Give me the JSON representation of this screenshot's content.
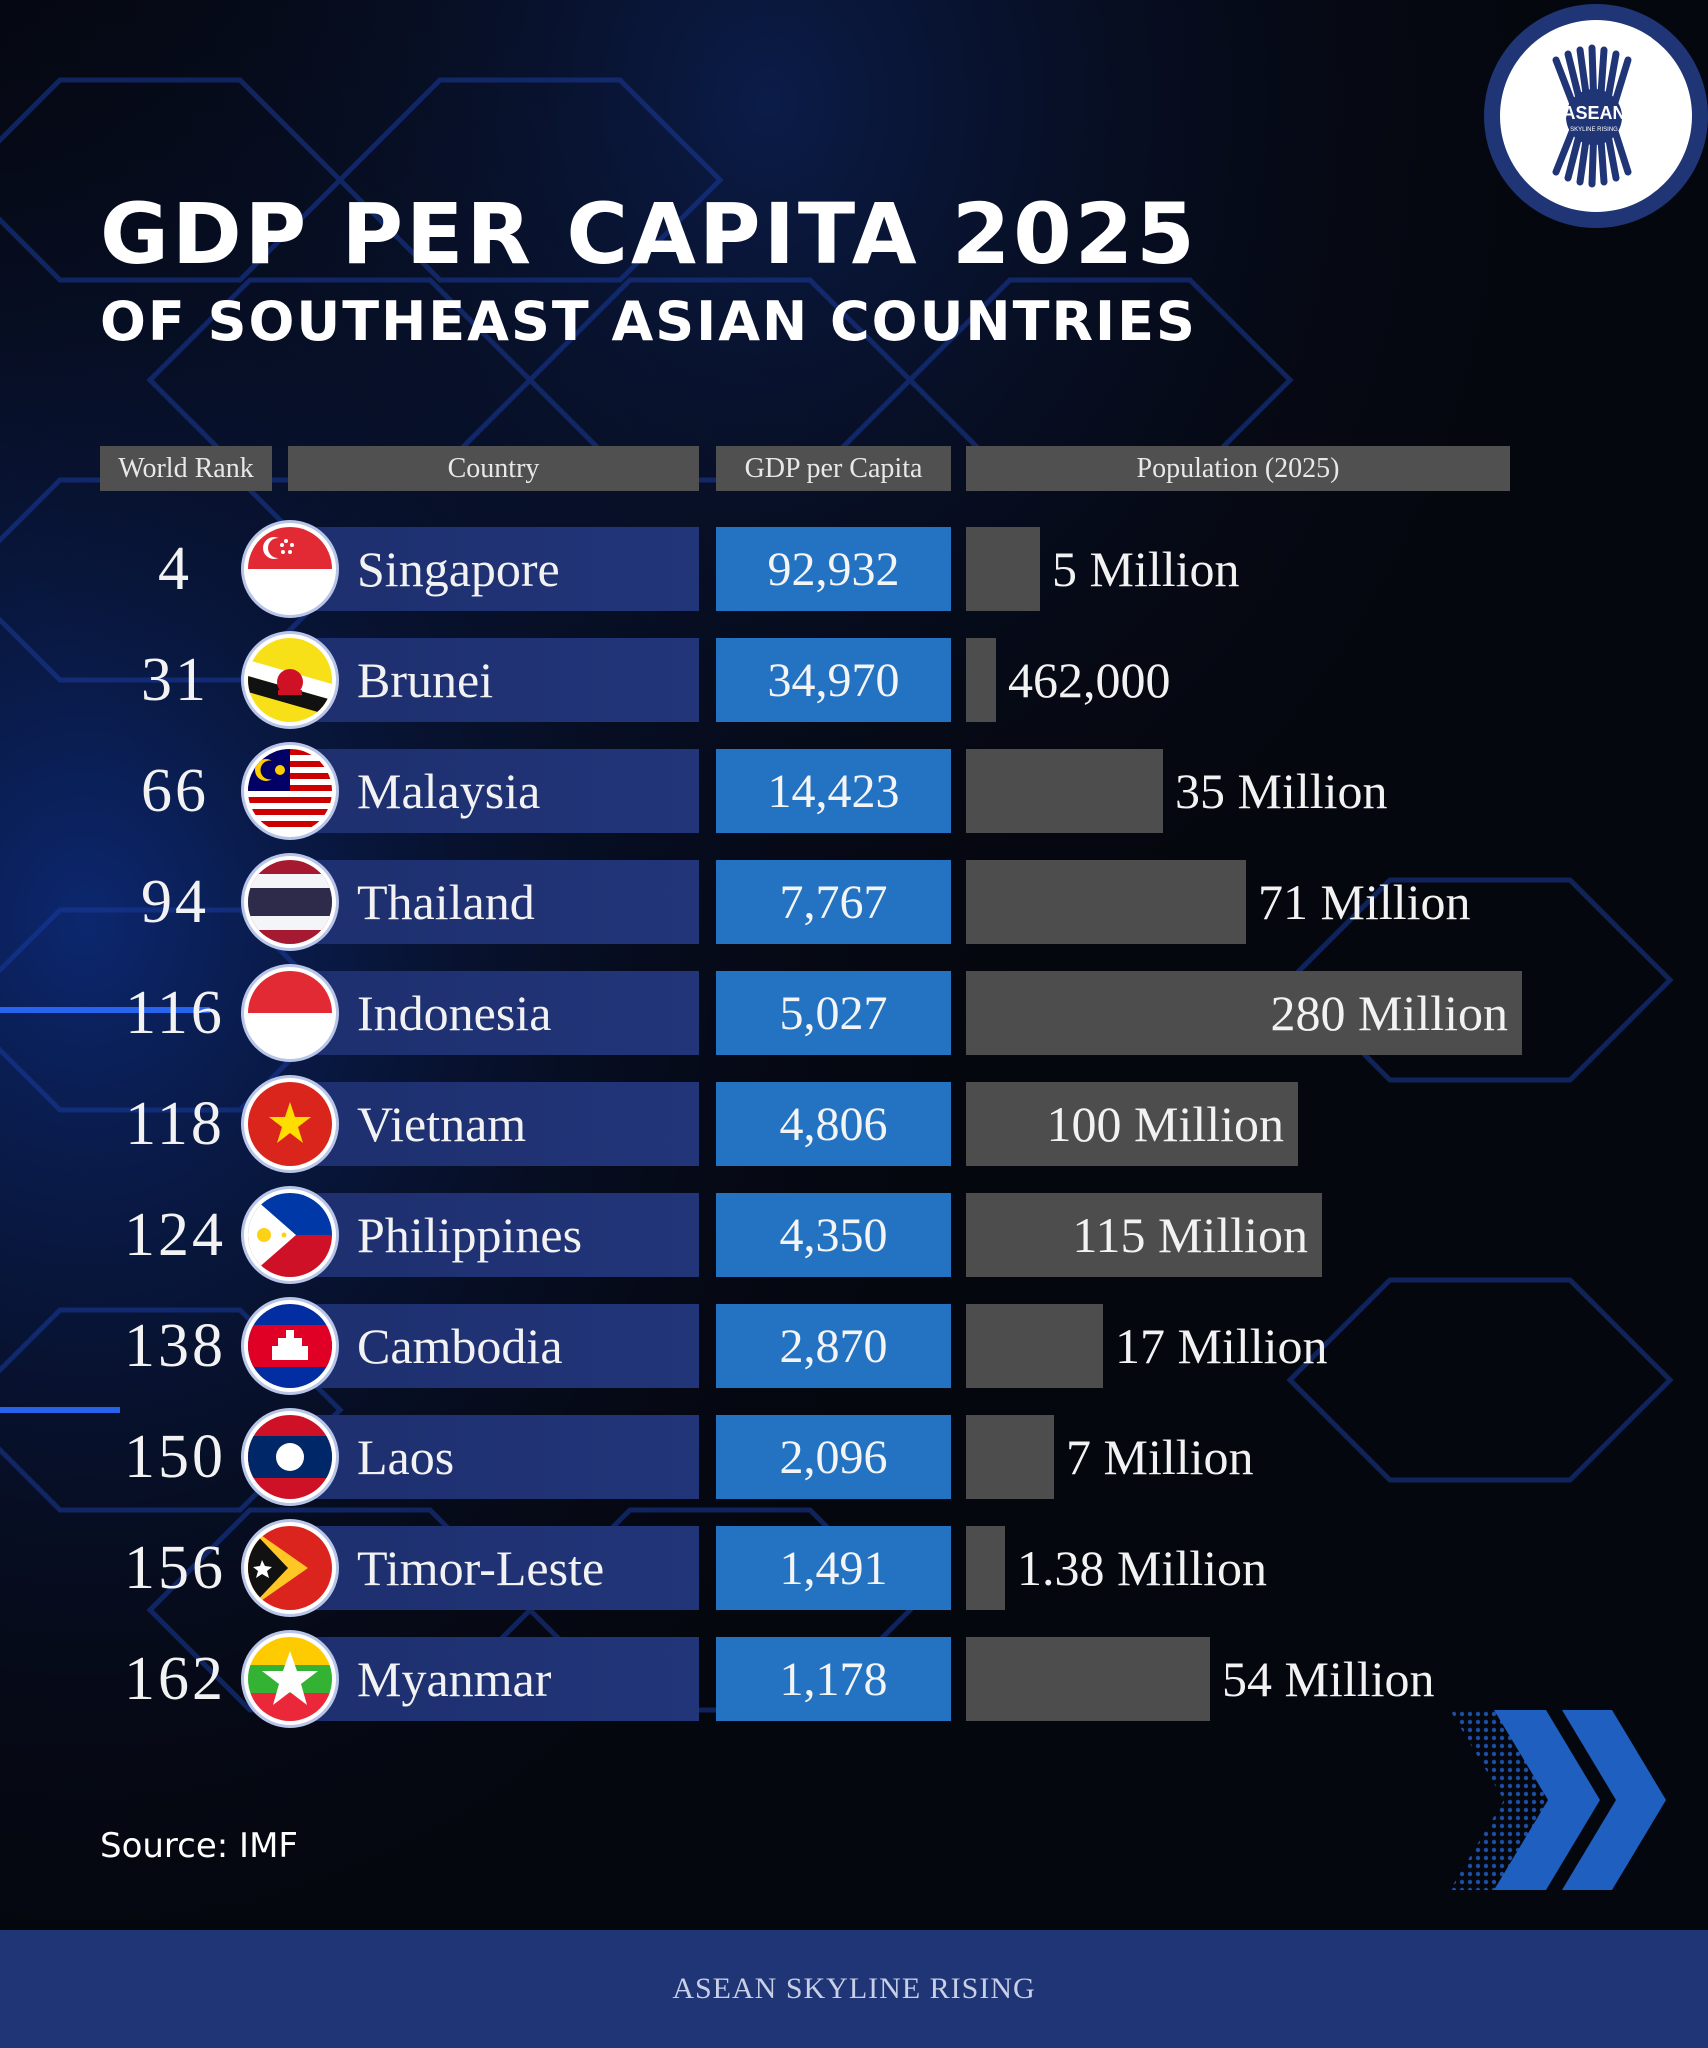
{
  "title": "GDP PER CAPITA 2025",
  "subtitle": "OF SOUTHEAST ASIAN COUNTRIES",
  "headers": {
    "rank": "World Rank",
    "country": "Country",
    "gdp": "GDP per Capita",
    "population": "Population (2025)"
  },
  "source": "Source: IMF",
  "footer": "ASEAN SKYLINE RISING",
  "logo": {
    "text": "ASEAN",
    "subtext": "SKYLINE RISING"
  },
  "colors": {
    "background": "#05070e",
    "country_bar": "#223579",
    "gdp_bar": "#2373c2",
    "population_bar": "#4d4d4d",
    "footer": "#1f3576"
  },
  "chart_data": {
    "type": "table",
    "columns": [
      "World Rank",
      "Country",
      "GDP per Capita",
      "Population (2025)"
    ],
    "rows": [
      {
        "rank": "4",
        "country": "Singapore",
        "gdp": "92,932",
        "gdp_value": 92932,
        "population": "5 Million",
        "population_value": 5.0
      },
      {
        "rank": "31",
        "country": "Brunei",
        "gdp": "34,970",
        "gdp_value": 34970,
        "population": "462,000",
        "population_value": 0.462
      },
      {
        "rank": "66",
        "country": "Malaysia",
        "gdp": "14,423",
        "gdp_value": 14423,
        "population": "35 Million",
        "population_value": 35
      },
      {
        "rank": "94",
        "country": "Thailand",
        "gdp": "7,767",
        "gdp_value": 7767,
        "population": "71 Million",
        "population_value": 71
      },
      {
        "rank": "116",
        "country": "Indonesia",
        "gdp": "5,027",
        "gdp_value": 5027,
        "population": "280 Million",
        "population_value": 280
      },
      {
        "rank": "118",
        "country": "Vietnam",
        "gdp": "4,806",
        "gdp_value": 4806,
        "population": "100 Million",
        "population_value": 100
      },
      {
        "rank": "124",
        "country": "Philippines",
        "gdp": "4,350",
        "gdp_value": 4350,
        "population": "115 Million",
        "population_value": 115
      },
      {
        "rank": "138",
        "country": "Cambodia",
        "gdp": "2,870",
        "gdp_value": 2870,
        "population": "17 Million",
        "population_value": 17
      },
      {
        "rank": "150",
        "country": "Laos",
        "gdp": "2,096",
        "gdp_value": 2096,
        "population": "7 Million",
        "population_value": 7
      },
      {
        "rank": "156",
        "country": "Timor-Leste",
        "gdp": "1,491",
        "gdp_value": 1491,
        "population": "1.38 Million",
        "population_value": 1.38
      },
      {
        "rank": "162",
        "country": "Myanmar",
        "gdp": "1,178",
        "gdp_value": 1178,
        "population": "54 Million",
        "population_value": 54
      }
    ]
  },
  "flags": [
    "singapore-flag-icon",
    "brunei-flag-icon",
    "malaysia-flag-icon",
    "thailand-flag-icon",
    "indonesia-flag-icon",
    "vietnam-flag-icon",
    "philippines-flag-icon",
    "cambodia-flag-icon",
    "laos-flag-icon",
    "timor-leste-flag-icon",
    "myanmar-flag-icon"
  ]
}
